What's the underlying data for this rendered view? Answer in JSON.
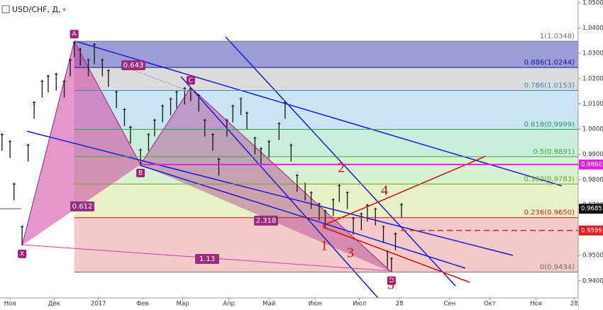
{
  "chart_data": {
    "type": "ohlc",
    "title": "USD/CHF, Д,",
    "color": "#111111",
    "x": [
      -4,
      0,
      2,
      6,
      9,
      12,
      16,
      19,
      23,
      27,
      30,
      32,
      35,
      39,
      42,
      46,
      49,
      53,
      57,
      60,
      65,
      69,
      72,
      76,
      80,
      83,
      87,
      90,
      94,
      97,
      101,
      104,
      108,
      111,
      115,
      118,
      122,
      125,
      129,
      134,
      137,
      140,
      143,
      147,
      150,
      154,
      157,
      161,
      164,
      168,
      171,
      175,
      178,
      182,
      186,
      188,
      190,
      192,
      195
    ],
    "high": [
      0.9984,
      0.9956,
      0.9788,
      0.9619,
      0.9942,
      1.0111,
      1.0195,
      1.0215,
      1.0223,
      1.0195,
      1.0279,
      1.0348,
      1.0322,
      1.0279,
      1.034,
      1.0279,
      1.0237,
      1.0153,
      1.0083,
      1.0013,
      0.9923,
      0.9984,
      1.0041,
      1.0097,
      1.0125,
      1.0153,
      1.0167,
      1.0165,
      1.0139,
      1.0041,
      0.9984,
      0.9886,
      1.0041,
      1.0097,
      1.0125,
      1.0069,
      0.997,
      0.9928,
      0.9956,
      1.0027,
      1.0111,
      0.9942,
      0.9822,
      0.9788,
      0.9754,
      0.9709,
      0.9681,
      0.9726,
      0.9782,
      0.9754,
      0.9653,
      0.967,
      0.9704,
      0.9689,
      0.9619,
      0.9521,
      0.9493,
      0.9591,
      0.9707
    ],
    "low": [
      0.9914,
      0.9886,
      0.9718,
      0.954,
      0.9872,
      1.0041,
      1.0125,
      1.0145,
      1.0153,
      1.0125,
      1.0209,
      1.0285,
      1.0252,
      1.0209,
      1.0257,
      1.0209,
      1.0167,
      1.0083,
      1.0013,
      0.9943,
      0.986,
      0.9914,
      0.9971,
      1.0027,
      1.0055,
      1.0083,
      1.0097,
      1.0111,
      1.0069,
      0.9971,
      0.9914,
      0.9816,
      0.9971,
      1.0027,
      1.0055,
      0.9999,
      0.99,
      0.9858,
      0.9886,
      0.9957,
      1.0041,
      0.9872,
      0.9752,
      0.9718,
      0.9684,
      0.9639,
      0.9611,
      0.9656,
      0.9712,
      0.9684,
      0.9583,
      0.96,
      0.9634,
      0.9619,
      0.9549,
      0.9451,
      0.9434,
      0.9521,
      0.9648
    ],
    "xlim": [
      -5,
      283
    ],
    "xticks": [
      {
        "value": 0,
        "label": "Ноя"
      },
      {
        "value": 22,
        "label": "Дек"
      },
      {
        "value": 44,
        "label": "2017"
      },
      {
        "value": 66,
        "label": "Фев"
      },
      {
        "value": 86,
        "label": "Мар"
      },
      {
        "value": 109,
        "label": "Апр"
      },
      {
        "value": 129,
        "label": "Май"
      },
      {
        "value": 152,
        "label": "Июн"
      },
      {
        "value": 174,
        "label": "Июл"
      },
      {
        "value": 194,
        "label": "28"
      },
      {
        "value": 219,
        "label": "Сен"
      },
      {
        "value": 239,
        "label": "Окт"
      },
      {
        "value": 262,
        "label": "Ноя"
      },
      {
        "value": 281,
        "label": "28"
      }
    ],
    "ylim": [
      0.9332,
      1.0511
    ],
    "yticks": [
      {
        "value": 1.05,
        "label": "1.0500"
      },
      {
        "value": 1.04,
        "label": "1.0400"
      },
      {
        "value": 1.03,
        "label": "1.0300"
      },
      {
        "value": 1.02,
        "label": "1.0200"
      },
      {
        "value": 1.01,
        "label": "1.0100"
      },
      {
        "value": 1,
        "label": "1.0000"
      },
      {
        "value": 0.99,
        "label": "0.9900"
      },
      {
        "value": 0.98,
        "label": "0.9800"
      },
      {
        "value": 0.97,
        "label": "0.9700"
      },
      {
        "value": 0.96,
        "label": "0.9600"
      },
      {
        "value": 0.95,
        "label": "0.9500"
      },
      {
        "value": 0.94,
        "label": "0.9400"
      }
    ],
    "fib": {
      "x": [
        32,
        283
      ],
      "levels": [
        {
          "label": "1(1.0348)",
          "value": 1.0348,
          "color": "#787878",
          "fill": "#9c9cd8"
        },
        {
          "label": "0.886(1.0244)",
          "value": 1.0244,
          "color": "#1a1a9a",
          "fill": "#dcdcdc"
        },
        {
          "label": "0.786(1.0153)",
          "value": 1.0153,
          "color": "#3a8ab8",
          "fill": "#c9e4f4"
        },
        {
          "label": "0.618(0.9999)",
          "value": 0.9999,
          "color": "#2aa050",
          "fill": "#c8eedb"
        },
        {
          "label": "0.5(0.9891)",
          "value": 0.9891,
          "color": "#3cae3c",
          "fill": "#d6f2d2"
        },
        {
          "label": "0.382(0.9783)",
          "value": 0.9783,
          "color": "#7aa020",
          "fill": "#e6f2c6"
        },
        {
          "label": "0.236(0.9650)",
          "value": 0.965,
          "color": "#d02020",
          "fill": "#f3c9c9"
        },
        {
          "label": "0(0.9434)",
          "value": 0.9434,
          "color": "#707070"
        }
      ]
    },
    "price_labels": [
      {
        "value": 0.986,
        "label": "0.9860",
        "color": "#e020e0"
      },
      {
        "value": 0.9685,
        "label": "0.9685",
        "color": "#111111"
      },
      {
        "value": 0.9599,
        "label": "0.9599",
        "color": "#e02020"
      }
    ],
    "pattern": {
      "color": "#a0207a",
      "points": [
        {
          "label": "X",
          "x": 6,
          "y": 0.954
        },
        {
          "label": "A",
          "x": 32,
          "y": 1.0348
        },
        {
          "label": "B",
          "x": 65,
          "y": 0.986
        },
        {
          "label": "C",
          "x": 90,
          "y": 1.0165
        },
        {
          "label": "D",
          "x": 190,
          "y": 0.9434
        }
      ]
    },
    "ratios": [
      "0.643",
      "0.612",
      "2.318",
      "1.13"
    ],
    "waves": [
      "1",
      "2",
      "3",
      "4",
      "5"
    ]
  }
}
